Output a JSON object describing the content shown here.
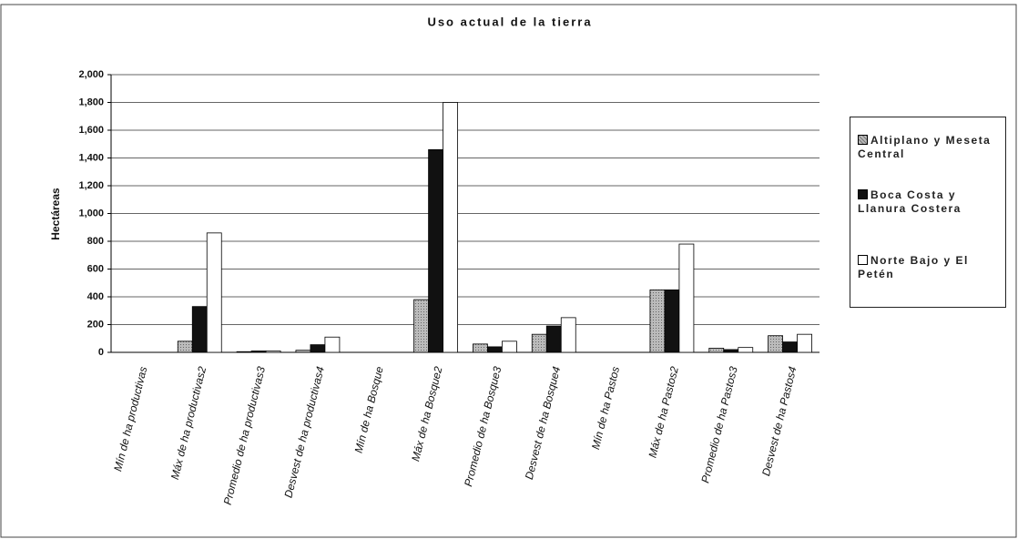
{
  "chart_data": {
    "type": "bar",
    "title": "Uso actual de la tierra",
    "y_label": "Hectáreas",
    "categories": [
      "Mín de ha productivas",
      "Máx de ha productivas2",
      "Promedio de ha productivas3",
      "Desvest de ha productivas4",
      "Mín de ha Bosque",
      "Máx de ha Bosque2",
      "Promedio de ha Bosque3",
      "Desvest de ha Bosque4",
      "Mín de ha Pastos",
      "Máx de ha Pastos2",
      "Promedio de ha Pastos3",
      "Desvest de ha Pastos4"
    ],
    "series": [
      {
        "name": "Altiplano y Meseta Central",
        "color": "#a8a8a8",
        "values": [
          0,
          80,
          5,
          15,
          0,
          380,
          60,
          130,
          0,
          450,
          30,
          120
        ]
      },
      {
        "name": "Boca Costa y Llanura Costera",
        "color": "#111111",
        "values": [
          0,
          330,
          10,
          55,
          0,
          1460,
          40,
          190,
          0,
          450,
          20,
          75
        ]
      },
      {
        "name": "Norte Bajo y El Petén",
        "color": "#ffffff",
        "values": [
          0,
          860,
          10,
          110,
          0,
          1800,
          80,
          250,
          0,
          780,
          35,
          130
        ]
      }
    ],
    "ylim": [
      0,
      2000
    ],
    "yticks": [
      0,
      200,
      400,
      600,
      800,
      {
        "value": 1000,
        "label": "1,000"
      },
      {
        "value": 1200,
        "label": "1,200"
      },
      {
        "value": 1400,
        "label": "1,400"
      },
      {
        "value": 1600,
        "label": "1,600"
      },
      {
        "value": 1800,
        "label": "1,800"
      },
      {
        "value": 2000,
        "label": "2,000"
      }
    ],
    "grid": true,
    "legend": "right"
  }
}
